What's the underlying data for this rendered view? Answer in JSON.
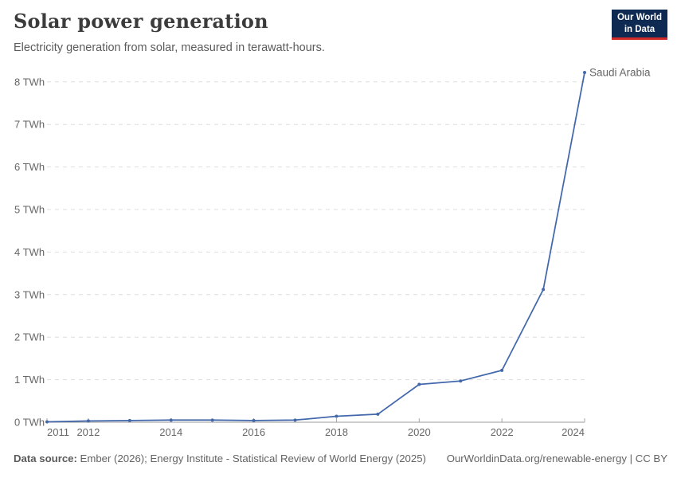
{
  "header": {
    "title": "Solar power generation",
    "subtitle": "Electricity generation from solar, measured in terawatt-hours.",
    "logo_line1": "Our World",
    "logo_line2": "in Data"
  },
  "chart_data": {
    "type": "line",
    "title": "Solar power generation",
    "unit": "TWh",
    "x": [
      2011,
      2012,
      2013,
      2014,
      2015,
      2016,
      2017,
      2018,
      2019,
      2020,
      2021,
      2022,
      2023,
      2024
    ],
    "series": [
      {
        "name": "Saudi Arabia",
        "values": [
          0.01,
          0.03,
          0.04,
          0.05,
          0.05,
          0.04,
          0.05,
          0.14,
          0.19,
          0.89,
          0.97,
          1.22,
          3.12,
          8.22
        ]
      }
    ],
    "ylim": [
      0,
      8
    ],
    "yticks": [
      0,
      1,
      2,
      3,
      4,
      5,
      6,
      7,
      8
    ],
    "ytick_suffix": " TWh",
    "xticks_labeled": [
      2011,
      2012,
      2014,
      2016,
      2018,
      2020,
      2022,
      2024
    ],
    "grid": "horizontal-dashed",
    "legend_position": "end-of-line-label"
  },
  "colors": {
    "line": "#4268ab",
    "grid": "#dedede",
    "axis": "#999999",
    "tick": "#a8a8a8",
    "tick_text": "#666666"
  },
  "footer": {
    "source_label": "Data source:",
    "source_text": " Ember (2026); Energy Institute - Statistical Review of World Energy (2025)",
    "link": "OurWorldinData.org/renewable-energy | CC BY"
  }
}
